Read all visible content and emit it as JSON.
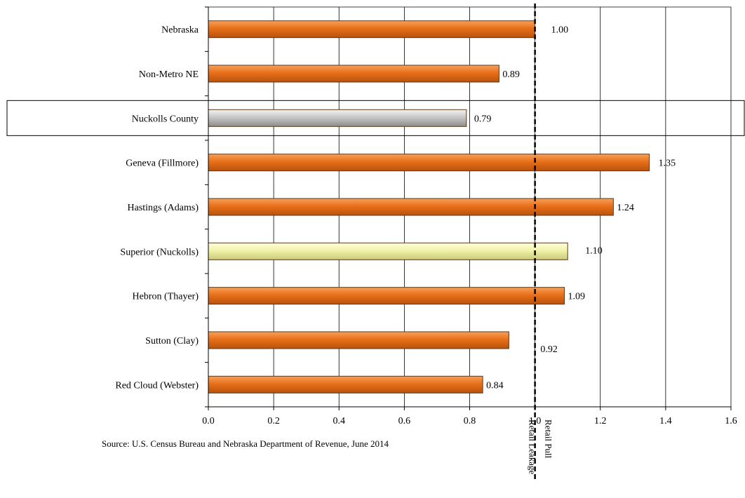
{
  "colors": {
    "default_bar": "#e8701a",
    "default_bar_light": "#f6a15c",
    "default_bar_dark": "#b8520c",
    "county_bar": "#c8c8c8",
    "county_bar_light": "#f2f2f2",
    "county_bar_dark": "#8c8c8c",
    "superior_bar": "#f2f2a8",
    "superior_bar_light": "#ffffe0",
    "superior_bar_dark": "#c9c97a",
    "grid": "#000000",
    "dashed_line": "#000000"
  },
  "chart_data": {
    "type": "bar",
    "orientation": "horizontal",
    "categories": [
      "Nebraska",
      "Non-Metro NE",
      "Nuckolls County",
      "Geneva (Fillmore)",
      "Hastings (Adams)",
      "Superior (Nuckolls)",
      "Hebron (Thayer)",
      "Sutton (Clay)",
      "Red Cloud (Webster)"
    ],
    "values": [
      1.0,
      0.89,
      0.79,
      1.35,
      1.24,
      1.1,
      1.09,
      0.92,
      0.84
    ],
    "value_labels": [
      "1.00",
      "0.89",
      "0.79",
      "1.35",
      "1.24",
      "1.10",
      "1.09",
      "0.92",
      "0.84"
    ],
    "bar_styles": [
      "default",
      "default",
      "county",
      "default",
      "default",
      "superior",
      "default",
      "default",
      "default"
    ],
    "highlighted_category": "Nuckolls County",
    "xlim": [
      0,
      1.6
    ],
    "xticks": [
      "0.0",
      "0.2",
      "0.4",
      "0.6",
      "0.8",
      "1.0",
      "1.2",
      "1.4",
      "1.6"
    ],
    "grid": "vertical",
    "reference_line": {
      "value": 1.0,
      "style": "dashed",
      "left_label": "Retail Leakage",
      "right_label": "Retail Pull"
    },
    "source": "Source: U.S. Census Bureau and Nebraska Department of Revenue, June 2014"
  }
}
